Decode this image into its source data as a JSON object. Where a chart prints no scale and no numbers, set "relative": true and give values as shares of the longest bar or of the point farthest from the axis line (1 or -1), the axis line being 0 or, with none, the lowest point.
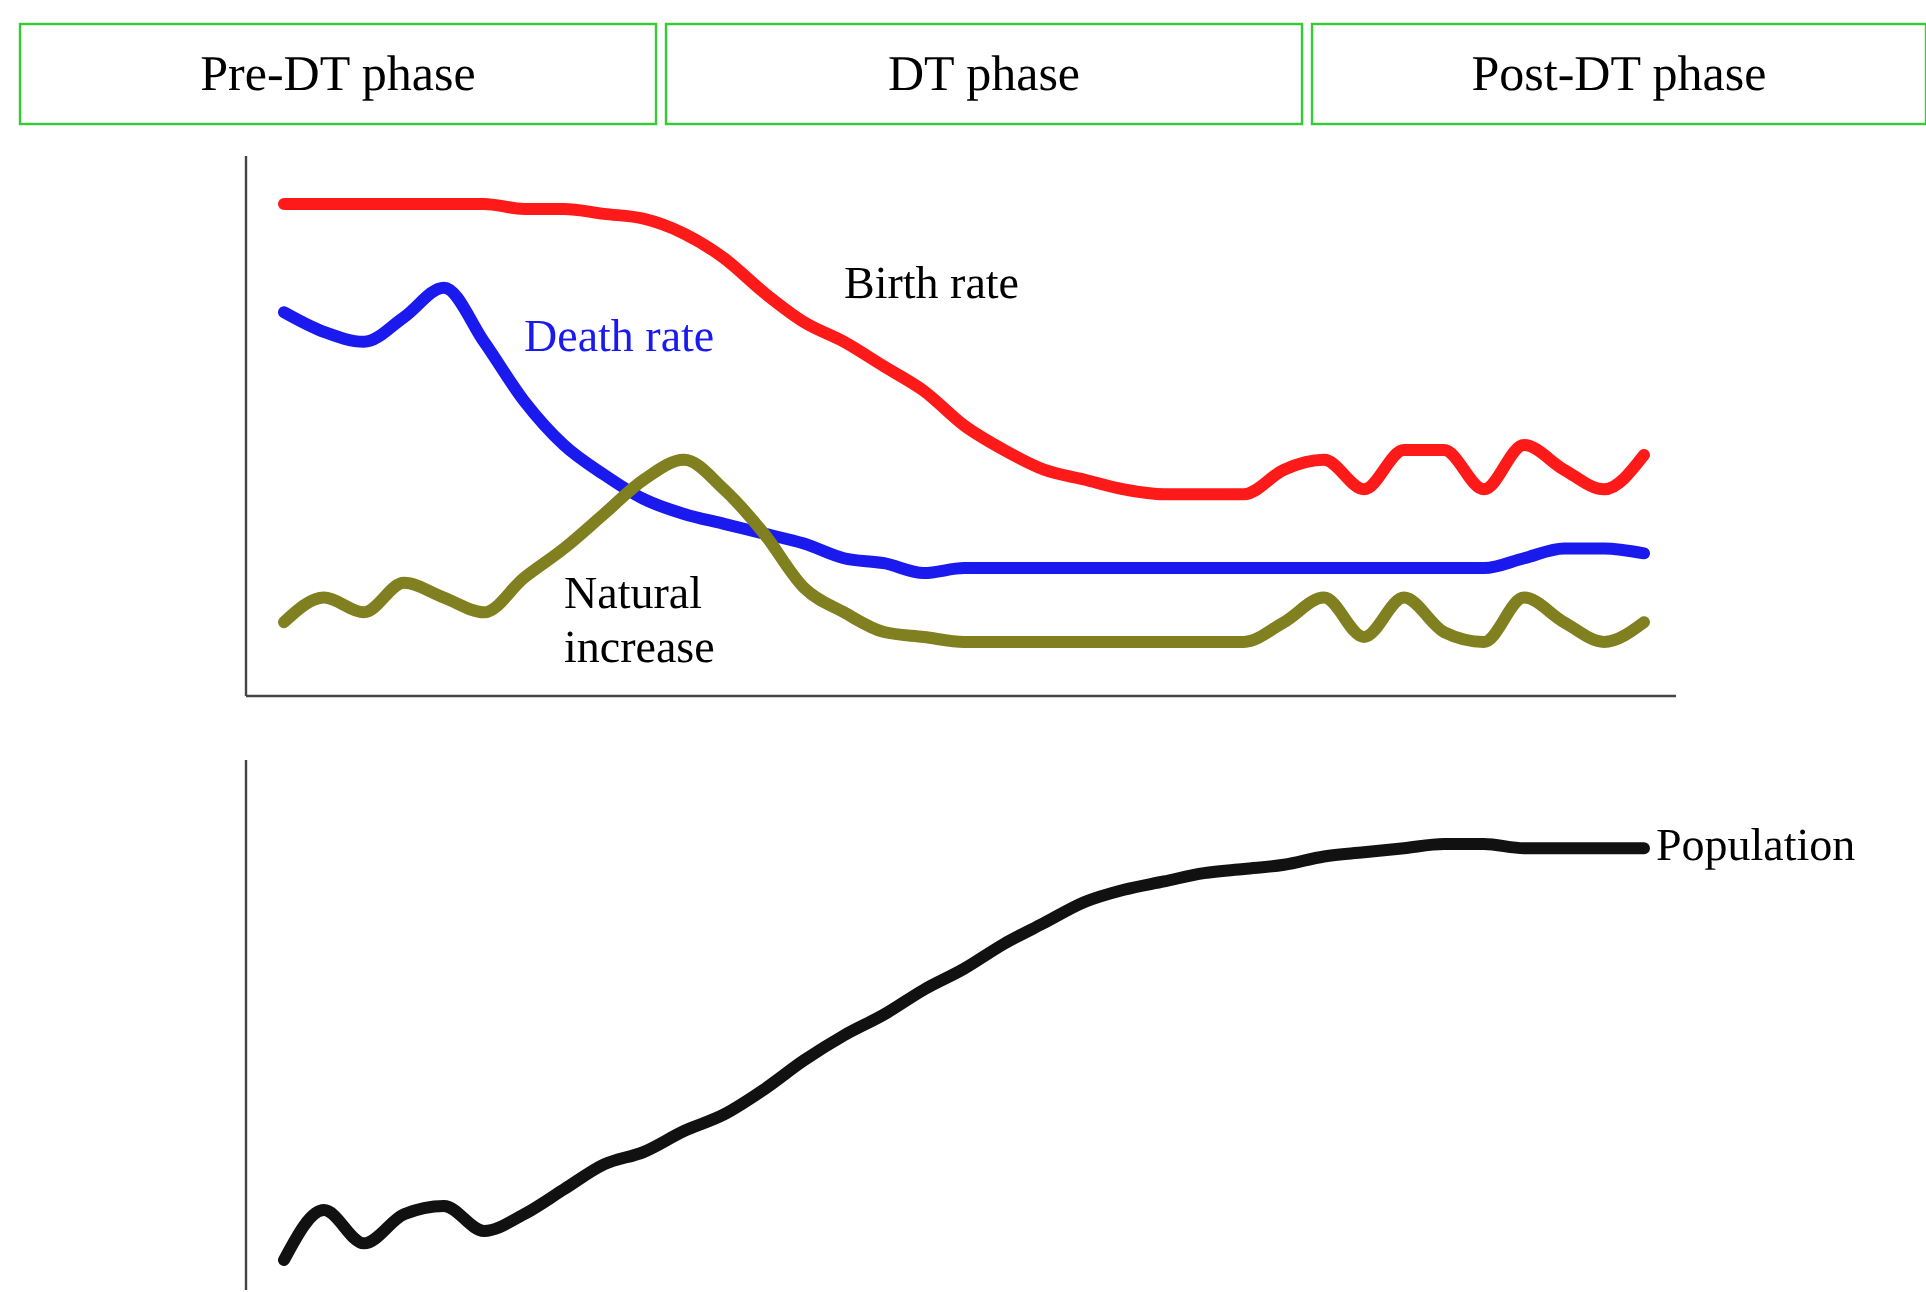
{
  "chart_data": [
    {
      "type": "other",
      "annotations": [
        "Pre-DT phase",
        "DT phase",
        "Post-DT phase"
      ]
    },
    {
      "type": "line",
      "relative": true,
      "categories": [
        null,
        null,
        null,
        null,
        null,
        null,
        null,
        null,
        null,
        null,
        null,
        null,
        null,
        null,
        null,
        null,
        null,
        null,
        null,
        null,
        null,
        null,
        null,
        null,
        null,
        null,
        null,
        null,
        null,
        null,
        null,
        null,
        null,
        null,
        null
      ],
      "series": [
        {
          "name": "Birth rate",
          "color": "#ff1a1a",
          "values": [
            1.0,
            1.0,
            1.0,
            1.0,
            1.0,
            1.0,
            0.99,
            0.99,
            0.98,
            0.97,
            0.94,
            0.89,
            0.82,
            0.76,
            0.72,
            0.67,
            0.62,
            0.55,
            0.5,
            0.46,
            0.44,
            0.42,
            0.41,
            0.41,
            0.41,
            0.46,
            0.48,
            0.42,
            0.5,
            0.5,
            0.42,
            0.51,
            0.46,
            0.42,
            0.49
          ]
        },
        {
          "name": "Death rate",
          "color": "#1a1aee",
          "values": [
            0.78,
            0.74,
            0.72,
            0.77,
            0.83,
            0.72,
            0.6,
            0.51,
            0.45,
            0.4,
            0.37,
            0.35,
            0.33,
            0.31,
            0.28,
            0.27,
            0.25,
            0.26,
            0.26,
            0.26,
            0.26,
            0.26,
            0.26,
            0.26,
            0.26,
            0.26,
            0.26,
            0.26,
            0.26,
            0.26,
            0.26,
            0.28,
            0.3,
            0.3,
            0.29
          ]
        },
        {
          "name": "Natural increase",
          "color": "#808020",
          "values": [
            0.15,
            0.2,
            0.17,
            0.23,
            0.2,
            0.17,
            0.24,
            0.3,
            0.37,
            0.44,
            0.48,
            0.42,
            0.33,
            0.22,
            0.17,
            0.13,
            0.12,
            0.11,
            0.11,
            0.11,
            0.11,
            0.11,
            0.11,
            0.11,
            0.11,
            0.15,
            0.2,
            0.12,
            0.2,
            0.13,
            0.11,
            0.2,
            0.15,
            0.11,
            0.15
          ]
        }
      ]
    },
    {
      "type": "line",
      "relative": true,
      "categories": [
        null,
        null,
        null,
        null,
        null,
        null,
        null,
        null,
        null,
        null,
        null,
        null,
        null,
        null,
        null,
        null,
        null,
        null,
        null,
        null,
        null,
        null,
        null,
        null,
        null,
        null,
        null,
        null,
        null,
        null,
        null,
        null,
        null,
        null,
        null
      ],
      "series": [
        {
          "name": "Population",
          "color": "#111111",
          "values": [
            0,
            0.12,
            0.04,
            0.11,
            0.13,
            0.07,
            0.11,
            0.17,
            0.23,
            0.26,
            0.31,
            0.35,
            0.41,
            0.48,
            0.54,
            0.59,
            0.65,
            0.7,
            0.76,
            0.81,
            0.86,
            0.89,
            0.91,
            0.93,
            0.94,
            0.95,
            0.97,
            0.98,
            0.99,
            1,
            1,
            0.99,
            0.99,
            0.99,
            0.99
          ]
        }
      ]
    }
  ]
}
